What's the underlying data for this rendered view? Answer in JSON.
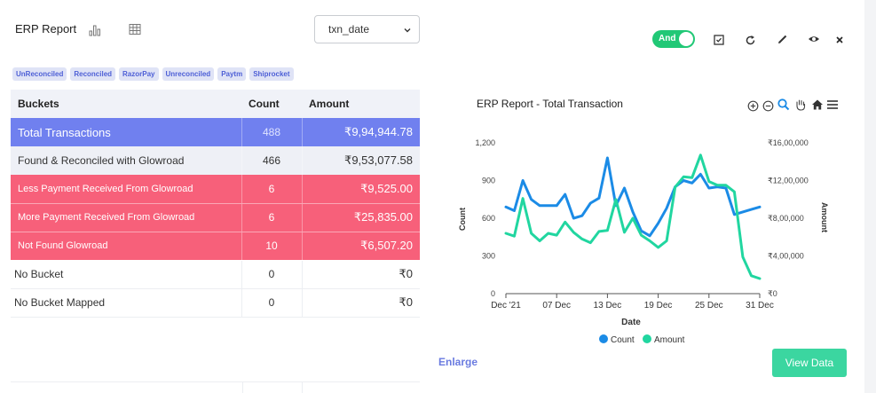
{
  "header": {
    "title": "ERP Report",
    "date_field": {
      "value": "txn_date"
    }
  },
  "filters": [
    "UnReconciled",
    "Reconciled",
    "RazorPay",
    "Unreconciled",
    "Paytm",
    "Shiprocket"
  ],
  "table": {
    "headers": {
      "bucket": "Buckets",
      "count": "Count",
      "amount": "Amount"
    },
    "rows": [
      {
        "bucket": "Total  Transactions",
        "count": "488",
        "amount": "₹9,94,944.78"
      },
      {
        "bucket": "Found & Reconciled with Glowroad",
        "count": "466",
        "amount": "₹9,53,077.58"
      },
      {
        "bucket": "Less Payment Received From Glowroad",
        "count": "6",
        "amount": "₹9,525.00"
      },
      {
        "bucket": "More Payment Received From Glowroad",
        "count": "6",
        "amount": "₹25,835.00"
      },
      {
        "bucket": " Not Found Glowroad",
        "count": "10",
        "amount": "₹6,507.20"
      },
      {
        "bucket": "No Bucket",
        "count": "0",
        "amount": "₹0"
      },
      {
        "bucket": "No Bucket Mapped",
        "count": "0",
        "amount": "₹0"
      }
    ]
  },
  "toolbar": {
    "toggle_label": "And",
    "toggle_on": true
  },
  "colors": {
    "count": "#1b8be6",
    "amount": "#21d6a0",
    "total_row": "#7080ef",
    "alert_row": "#f7607a",
    "toggle": "#21c876"
  },
  "chart_data": {
    "type": "line",
    "title": "ERP Report - Total Transaction",
    "xlabel": "Date",
    "ylabel": "Count",
    "y2label": "Amount",
    "x_ticks": [
      "Dec '21",
      "07 Dec",
      "13 Dec",
      "19 Dec",
      "25 Dec",
      "31 Dec"
    ],
    "y_ticks": [
      "0",
      "300",
      "600",
      "900",
      "1,200"
    ],
    "y2_ticks": [
      "₹0",
      "₹4,00,000",
      "₹8,00,000",
      "₹12,00,000",
      "₹16,00,000"
    ],
    "ylim": [
      0,
      1200
    ],
    "y2lim": [
      0,
      1600000
    ],
    "legend": "bottom",
    "x": [
      "01 Dec",
      "02 Dec",
      "03 Dec",
      "04 Dec",
      "05 Dec",
      "06 Dec",
      "07 Dec",
      "08 Dec",
      "09 Dec",
      "10 Dec",
      "11 Dec",
      "12 Dec",
      "13 Dec",
      "14 Dec",
      "15 Dec",
      "16 Dec",
      "17 Dec",
      "18 Dec",
      "19 Dec",
      "20 Dec",
      "21 Dec",
      "22 Dec",
      "23 Dec",
      "24 Dec",
      "25 Dec",
      "26 Dec",
      "27 Dec",
      "28 Dec",
      "29 Dec",
      "30 Dec",
      "31 Dec"
    ],
    "series": [
      {
        "name": "Count",
        "axis": "left",
        "values": [
          690,
          660,
          900,
          750,
          700,
          700,
          700,
          790,
          600,
          620,
          720,
          760,
          1080,
          700,
          840,
          650,
          500,
          460,
          560,
          680,
          850,
          900,
          880,
          950,
          840,
          850,
          840,
          630,
          650,
          670,
          690
        ]
      },
      {
        "name": "Amount",
        "axis": "right",
        "values": [
          640000,
          610000,
          1010000,
          640000,
          560000,
          640000,
          620000,
          760000,
          650000,
          580000,
          540000,
          660000,
          670000,
          1000000,
          650000,
          800000,
          620000,
          560000,
          490000,
          560000,
          1130000,
          1240000,
          1230000,
          1470000,
          1190000,
          1150000,
          1150000,
          1080000,
          390000,
          190000,
          160000
        ]
      }
    ]
  }
}
